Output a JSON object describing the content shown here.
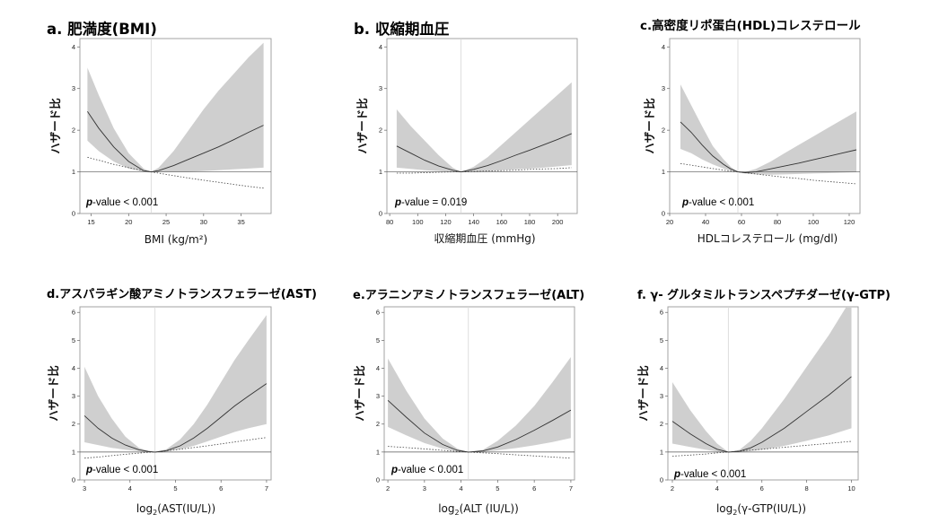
{
  "chart_data": [
    {
      "type": "line",
      "title": "a. 肥満度(BMI)",
      "xlabel": "BMI (kg/m²)",
      "ylabel": "ハザード比",
      "annotation": "p-value < 0.001",
      "xlim": [
        13.5,
        39
      ],
      "ylim": [
        0,
        4.2
      ],
      "xticks": [
        15,
        20,
        25,
        30,
        35
      ],
      "yticks": [
        0,
        1,
        2,
        3,
        4
      ],
      "reference_x": 23,
      "reference_y": 1,
      "x": [
        14.5,
        16,
        18,
        20,
        22,
        23,
        24,
        26,
        28,
        30,
        32,
        34,
        36,
        38
      ],
      "series": [
        {
          "name": "ハザード比",
          "values": [
            2.45,
            2.05,
            1.6,
            1.25,
            1.03,
            1.0,
            1.03,
            1.15,
            1.3,
            1.45,
            1.6,
            1.77,
            1.95,
            2.12
          ]
        },
        {
          "name": "lower",
          "values": [
            1.75,
            1.5,
            1.25,
            1.08,
            1.0,
            1.0,
            1.0,
            1.0,
            1.0,
            1.02,
            1.04,
            1.06,
            1.08,
            1.1
          ]
        },
        {
          "name": "upper",
          "values": [
            3.5,
            2.85,
            2.05,
            1.45,
            1.08,
            1.0,
            1.1,
            1.5,
            2.0,
            2.5,
            2.95,
            3.35,
            3.75,
            4.1
          ]
        },
        {
          "name": "dotted",
          "values": [
            1.35,
            1.28,
            1.18,
            1.1,
            1.03,
            1.0,
            0.97,
            0.91,
            0.85,
            0.8,
            0.75,
            0.7,
            0.65,
            0.61
          ]
        }
      ]
    },
    {
      "type": "line",
      "title": "b. 収縮期血圧",
      "xlabel": "収縮期血圧 (mmHg)",
      "ylabel": "ハザード比",
      "annotation": "p-value = 0.019",
      "xlim": [
        78,
        214
      ],
      "ylim": [
        0,
        4.2
      ],
      "xticks": [
        80,
        100,
        120,
        140,
        160,
        180,
        200
      ],
      "yticks": [
        0,
        1,
        2,
        3,
        4
      ],
      "reference_x": 131,
      "reference_y": 1,
      "x": [
        85,
        95,
        105,
        115,
        125,
        131,
        140,
        150,
        160,
        170,
        180,
        190,
        200,
        210
      ],
      "series": [
        {
          "name": "ハザード比",
          "values": [
            1.62,
            1.45,
            1.28,
            1.14,
            1.04,
            1.0,
            1.06,
            1.15,
            1.27,
            1.4,
            1.52,
            1.65,
            1.78,
            1.92
          ]
        },
        {
          "name": "lower",
          "values": [
            1.1,
            1.07,
            1.04,
            1.02,
            1.0,
            1.0,
            1.0,
            1.02,
            1.04,
            1.06,
            1.08,
            1.1,
            1.13,
            1.16
          ]
        },
        {
          "name": "upper",
          "values": [
            2.5,
            2.1,
            1.75,
            1.4,
            1.1,
            1.0,
            1.12,
            1.35,
            1.65,
            1.95,
            2.25,
            2.55,
            2.85,
            3.15
          ]
        },
        {
          "name": "dotted",
          "values": [
            0.97,
            0.97,
            0.98,
            0.99,
            1.0,
            1.0,
            1.01,
            1.02,
            1.03,
            1.04,
            1.06,
            1.07,
            1.08,
            1.1
          ]
        }
      ]
    },
    {
      "type": "line",
      "title": "c.高密度リポ蛋白(HDL)コレステロール",
      "xlabel": "HDLコレステロール (mg/dl)",
      "ylabel": "ハザード比",
      "annotation": "p-value < 0.001",
      "xlim": [
        20,
        126
      ],
      "ylim": [
        0,
        4.2
      ],
      "xticks": [
        20,
        40,
        60,
        80,
        100,
        120
      ],
      "yticks": [
        0,
        1,
        2,
        3,
        4
      ],
      "reference_x": 58,
      "reference_y": 1,
      "x": [
        26,
        32,
        38,
        44,
        50,
        54,
        58,
        62,
        68,
        76,
        84,
        92,
        100,
        108,
        116,
        124
      ],
      "series": [
        {
          "name": "ハザード比",
          "values": [
            2.2,
            1.95,
            1.65,
            1.38,
            1.18,
            1.07,
            1.0,
            0.98,
            1.0,
            1.07,
            1.14,
            1.21,
            1.29,
            1.37,
            1.45,
            1.53
          ]
        },
        {
          "name": "lower",
          "values": [
            1.55,
            1.45,
            1.3,
            1.18,
            1.08,
            1.03,
            1.0,
            0.96,
            0.94,
            0.93,
            0.94,
            0.95,
            0.96,
            0.97,
            0.98,
            0.99
          ]
        },
        {
          "name": "upper",
          "values": [
            3.1,
            2.6,
            2.1,
            1.62,
            1.3,
            1.12,
            1.0,
            1.0,
            1.07,
            1.24,
            1.45,
            1.65,
            1.85,
            2.05,
            2.25,
            2.45
          ]
        },
        {
          "name": "dotted",
          "values": [
            1.2,
            1.16,
            1.12,
            1.08,
            1.04,
            1.02,
            1.0,
            0.98,
            0.95,
            0.91,
            0.87,
            0.84,
            0.8,
            0.77,
            0.74,
            0.71
          ]
        }
      ]
    },
    {
      "type": "line",
      "title": "d.アスパラギン酸アミノトランスフェラーゼ(AST)",
      "xlabel": "log2(AST(IU/L))",
      "xlabel_parts": [
        "log",
        "2",
        "(AST(IU/L))"
      ],
      "ylabel": "ハザード比",
      "annotation": "p-value < 0.001",
      "xlim": [
        2.9,
        7.1
      ],
      "ylim": [
        0,
        6.2
      ],
      "xticks": [
        3,
        4,
        5,
        6,
        7
      ],
      "yticks": [
        0,
        1,
        2,
        3,
        4,
        5,
        6
      ],
      "reference_x": 4.55,
      "reference_y": 1,
      "x": [
        3,
        3.3,
        3.6,
        3.9,
        4.2,
        4.4,
        4.55,
        4.8,
        5.1,
        5.4,
        5.7,
        6.0,
        6.3,
        6.6,
        7.0
      ],
      "series": [
        {
          "name": "ハザード比",
          "values": [
            2.3,
            1.85,
            1.5,
            1.25,
            1.08,
            1.02,
            1.0,
            1.05,
            1.22,
            1.5,
            1.85,
            2.25,
            2.65,
            3.0,
            3.45
          ]
        },
        {
          "name": "lower",
          "values": [
            1.35,
            1.25,
            1.15,
            1.08,
            1.03,
            1.01,
            1.0,
            1.02,
            1.1,
            1.22,
            1.38,
            1.55,
            1.72,
            1.85,
            2.0
          ]
        },
        {
          "name": "upper",
          "values": [
            4.05,
            3.0,
            2.2,
            1.55,
            1.15,
            1.04,
            1.0,
            1.1,
            1.45,
            2.0,
            2.7,
            3.5,
            4.3,
            5.0,
            5.9
          ]
        },
        {
          "name": "dotted",
          "values": [
            0.78,
            0.82,
            0.87,
            0.92,
            0.96,
            0.99,
            1.0,
            1.04,
            1.1,
            1.16,
            1.22,
            1.29,
            1.36,
            1.43,
            1.52
          ]
        }
      ]
    },
    {
      "type": "line",
      "title": "e.アラニンアミノトランスフェラーゼ(ALT)",
      "xlabel": "log2(ALT (IU/L))",
      "xlabel_parts": [
        "log",
        "2",
        "(ALT (IU/L))"
      ],
      "ylabel": "ハザード比",
      "annotation": "p-value < 0.001",
      "xlim": [
        1.9,
        7.1
      ],
      "ylim": [
        0,
        6.2
      ],
      "xticks": [
        2,
        3,
        4,
        5,
        6,
        7
      ],
      "yticks": [
        0,
        1,
        2,
        3,
        4,
        5,
        6
      ],
      "reference_x": 4.2,
      "reference_y": 1,
      "x": [
        2,
        2.5,
        3,
        3.5,
        3.9,
        4.2,
        4.6,
        5.0,
        5.5,
        6.0,
        6.5,
        7.0
      ],
      "series": [
        {
          "name": "ハザード比",
          "values": [
            2.85,
            2.25,
            1.68,
            1.27,
            1.06,
            1.0,
            1.04,
            1.18,
            1.45,
            1.78,
            2.13,
            2.5
          ]
        },
        {
          "name": "lower",
          "values": [
            1.9,
            1.6,
            1.32,
            1.12,
            1.02,
            1.0,
            1.01,
            1.06,
            1.14,
            1.24,
            1.36,
            1.5
          ]
        },
        {
          "name": "upper",
          "values": [
            4.35,
            3.2,
            2.2,
            1.48,
            1.12,
            1.0,
            1.08,
            1.4,
            1.95,
            2.65,
            3.5,
            4.4
          ]
        },
        {
          "name": "dotted",
          "values": [
            1.2,
            1.16,
            1.11,
            1.06,
            1.02,
            1.0,
            0.97,
            0.94,
            0.9,
            0.86,
            0.82,
            0.78
          ]
        }
      ]
    },
    {
      "type": "line",
      "title": "f. γ- グルタミルトランスペプチダーゼ(γ-GTP)",
      "xlabel": "log2(γ-GTP(IU/L))",
      "xlabel_parts": [
        "log",
        "2",
        "(γ-GTP(IU/L))"
      ],
      "ylabel": "ハザード比",
      "annotation": "p-value < 0.001",
      "xlim": [
        1.8,
        10.3
      ],
      "ylim": [
        0,
        6.2
      ],
      "xticks": [
        2,
        4,
        6,
        8,
        10
      ],
      "yticks": [
        0,
        1,
        2,
        3,
        4,
        5,
        6
      ],
      "reference_x": 4.5,
      "reference_y": 1,
      "x": [
        2,
        2.8,
        3.5,
        4.0,
        4.5,
        5.0,
        5.5,
        6.0,
        7.0,
        8.0,
        9.0,
        10.0
      ],
      "series": [
        {
          "name": "ハザード比",
          "values": [
            2.1,
            1.65,
            1.3,
            1.1,
            1.0,
            1.03,
            1.15,
            1.35,
            1.85,
            2.45,
            3.05,
            3.7
          ]
        },
        {
          "name": "lower",
          "values": [
            1.3,
            1.18,
            1.08,
            1.02,
            1.0,
            1.0,
            1.03,
            1.08,
            1.22,
            1.4,
            1.6,
            1.85
          ]
        },
        {
          "name": "upper",
          "values": [
            3.5,
            2.5,
            1.75,
            1.3,
            1.0,
            1.08,
            1.4,
            1.85,
            2.9,
            4.05,
            5.2,
            6.5
          ]
        },
        {
          "name": "dotted",
          "values": [
            0.85,
            0.89,
            0.93,
            0.97,
            1.0,
            1.03,
            1.07,
            1.1,
            1.17,
            1.24,
            1.31,
            1.38
          ]
        }
      ]
    }
  ]
}
